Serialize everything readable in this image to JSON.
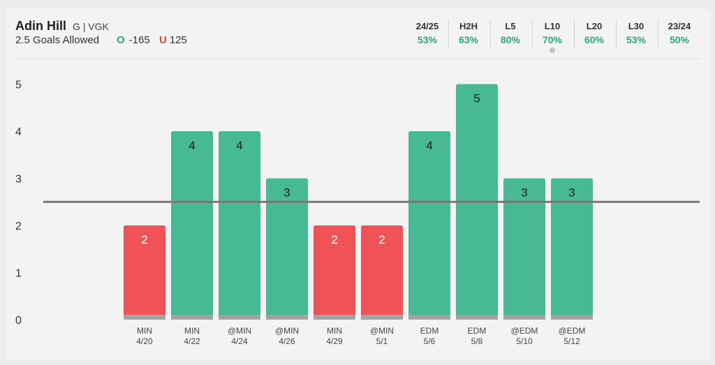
{
  "header": {
    "player_name": "Adin Hill",
    "player_meta": "G | VGK",
    "prop_label": "2.5 Goals Allowed",
    "over_tag": "O",
    "over_odds": "-165",
    "under_tag": "U",
    "under_odds": "125"
  },
  "hit_rates": [
    {
      "label": "24/25",
      "value": "53%"
    },
    {
      "label": "H2H",
      "value": "63%"
    },
    {
      "label": "L5",
      "value": "80%"
    },
    {
      "label": "L10",
      "value": "70%"
    },
    {
      "label": "L20",
      "value": "60%"
    },
    {
      "label": "L30",
      "value": "53%"
    },
    {
      "label": "23/24",
      "value": "50%"
    }
  ],
  "selected_hit_rate": "L10",
  "colors": {
    "over": "#47b994",
    "under": "#ef5358",
    "line": "#777777",
    "base": "#a3a3a3",
    "value_green": "#2aa57a"
  },
  "chart_data": {
    "type": "bar",
    "title": "",
    "xlabel": "",
    "ylabel": "",
    "ylim": [
      0,
      5
    ],
    "yticks": [
      0,
      1,
      2,
      3,
      4,
      5
    ],
    "line_value": 2.5,
    "categories": [
      {
        "opp": "MIN",
        "date": "4/20"
      },
      {
        "opp": "MIN",
        "date": "4/22"
      },
      {
        "opp": "@MIN",
        "date": "4/24"
      },
      {
        "opp": "@MIN",
        "date": "4/26"
      },
      {
        "opp": "MIN",
        "date": "4/29"
      },
      {
        "opp": "@MIN",
        "date": "5/1"
      },
      {
        "opp": "EDM",
        "date": "5/6"
      },
      {
        "opp": "EDM",
        "date": "5/8"
      },
      {
        "opp": "@EDM",
        "date": "5/10"
      },
      {
        "opp": "@EDM",
        "date": "5/12"
      }
    ],
    "values": [
      2,
      4,
      4,
      3,
      2,
      2,
      4,
      5,
      3,
      3
    ],
    "grid": false,
    "legend": "none"
  }
}
